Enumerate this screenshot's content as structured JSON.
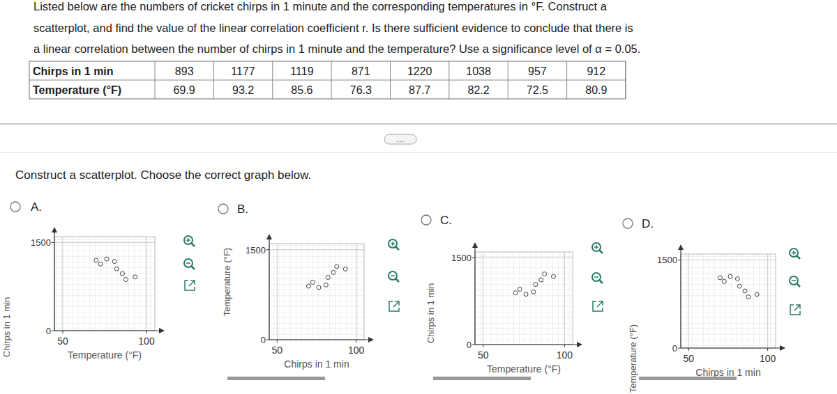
{
  "question": [
    "Listed below are the numbers of cricket chirps in 1 minute and the corresponding temperatures in °F. Construct a",
    "scatterplot, and find the value of the linear correlation coefficient r. Is there sufficient evidence to conclude that there is",
    "a linear correlation between the number of chirps in 1 minute and the temperature? Use a significance level of α = 0.05."
  ],
  "table": {
    "rows": [
      [
        "Chirps in 1 min",
        893,
        1177,
        1119,
        871,
        1220,
        1038,
        957,
        912
      ],
      [
        "Temperature (°F)",
        69.9,
        93.2,
        85.6,
        76.3,
        87.7,
        82.2,
        72.5,
        80.9
      ]
    ]
  },
  "more_button": "...",
  "prompt": "Construct a scatterplot. Choose the correct graph below.",
  "chart_data": [
    {
      "option": "A.",
      "type": "scatter",
      "x_label": "Temperature (°F)",
      "y_label": "Chirps in 1 min",
      "x": [
        69.9,
        93.2,
        85.6,
        76.3,
        87.7,
        82.2,
        72.5,
        80.9
      ],
      "values": [
        1198,
        914,
        972,
        1220,
        871,
        1053,
        1134,
        1179
      ],
      "xlim": [
        45,
        105
      ],
      "ylim": [
        0,
        1600
      ],
      "xticks": [
        50,
        100
      ],
      "yticks": [
        0,
        1500
      ],
      "grid": true,
      "marker": "circle"
    },
    {
      "option": "B.",
      "type": "scatter",
      "x_label": "Chirps in 1 min",
      "y_label": "Temperature (°F)",
      "x": [
        69.9,
        93.2,
        85.6,
        76.3,
        87.7,
        82.2,
        72.5,
        80.9
      ],
      "values": [
        893,
        1177,
        1119,
        871,
        1220,
        1038,
        957,
        912
      ],
      "xlim": [
        45,
        105
      ],
      "ylim": [
        0,
        1600
      ],
      "xticks": [
        50,
        100
      ],
      "yticks": [
        0,
        1500
      ],
      "grid": true,
      "marker": "circle"
    },
    {
      "option": "C.",
      "type": "scatter",
      "x_label": "Temperature (°F)",
      "y_label": "Chirps in 1 min",
      "x": [
        69.9,
        93.2,
        85.6,
        76.3,
        87.7,
        82.2,
        72.5,
        80.9
      ],
      "values": [
        893,
        1177,
        1119,
        871,
        1220,
        1038,
        957,
        912
      ],
      "xlim": [
        45,
        105
      ],
      "ylim": [
        0,
        1600
      ],
      "xticks": [
        50,
        100
      ],
      "yticks": [
        0,
        1500
      ],
      "grid": true,
      "marker": "circle"
    },
    {
      "option": "D.",
      "type": "scatter",
      "x_label": "Chirps in 1 min",
      "y_label": "Temperature (°F)",
      "x": [
        69.9,
        93.2,
        85.6,
        76.3,
        87.7,
        82.2,
        72.5,
        80.9
      ],
      "values": [
        1198,
        914,
        972,
        1220,
        871,
        1053,
        1134,
        1179
      ],
      "xlim": [
        45,
        105
      ],
      "ylim": [
        0,
        1600
      ],
      "xticks": [
        50,
        100
      ],
      "yticks": [
        0,
        1500
      ],
      "grid": true,
      "marker": "circle"
    }
  ]
}
